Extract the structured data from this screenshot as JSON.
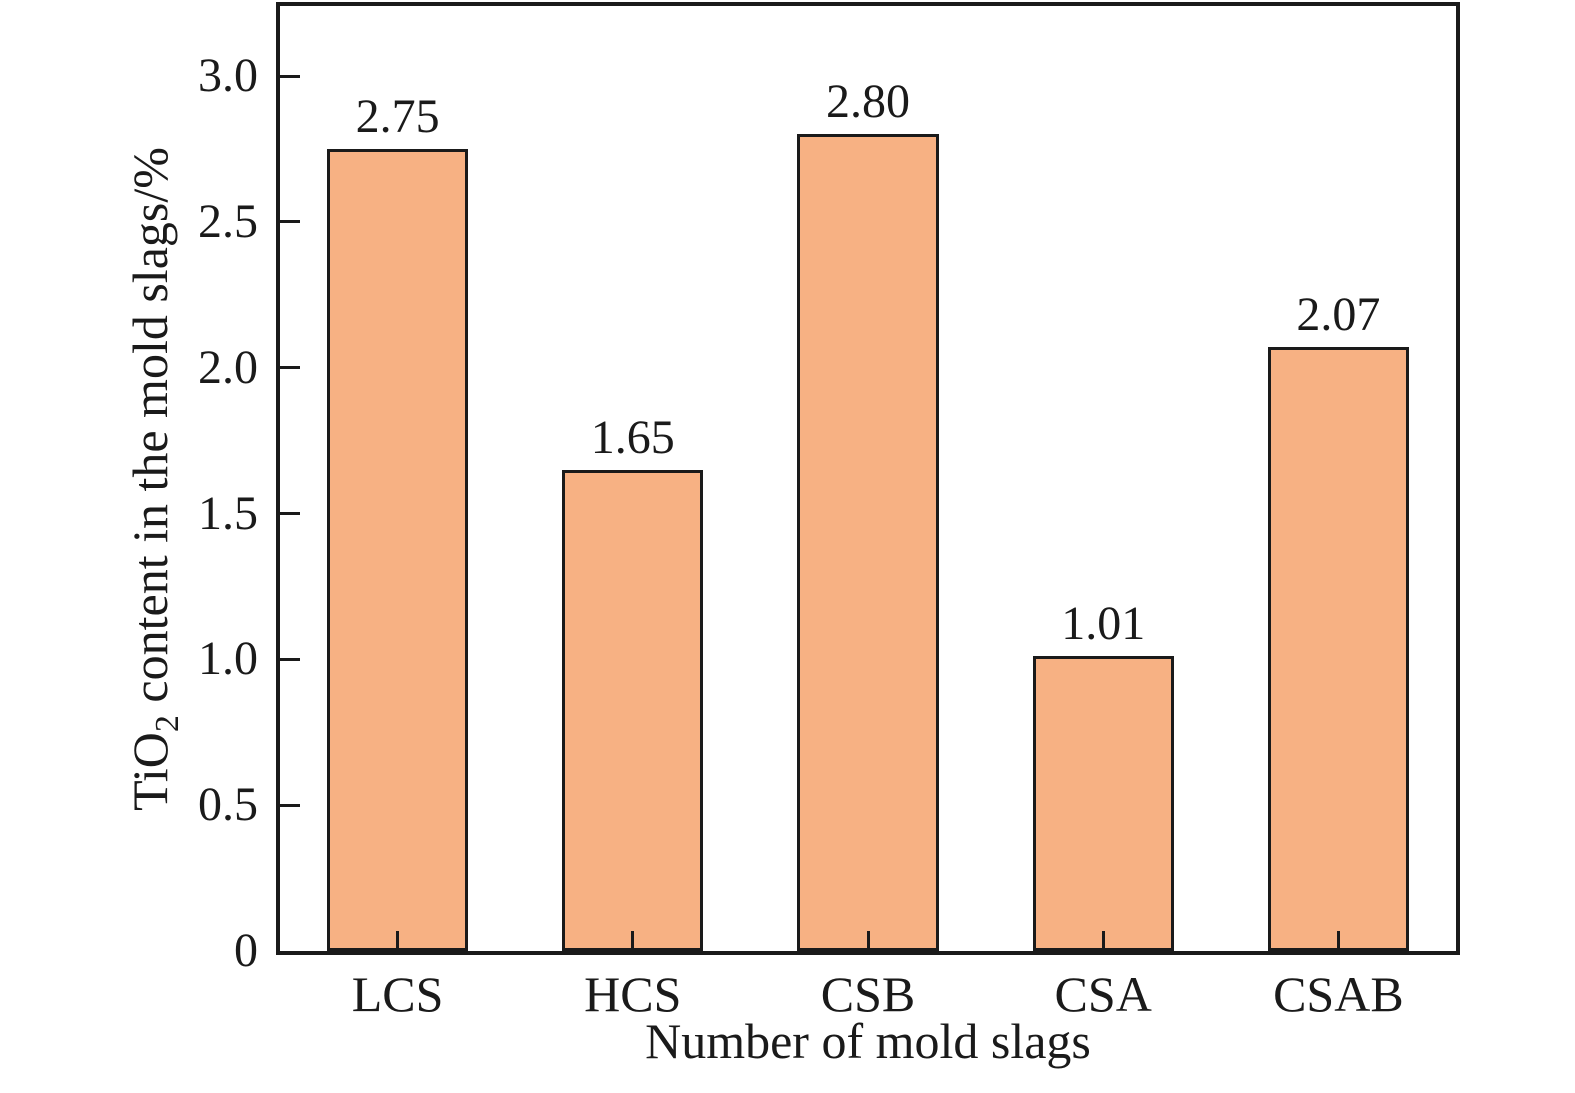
{
  "figure": {
    "background": "#ffffff"
  },
  "axes": {
    "y_label_prefix": "TiO",
    "y_label_sub": "2",
    "y_label_suffix": " content in the mold slags/%",
    "x_label": "Number of mold slags"
  },
  "chart_data": {
    "type": "bar",
    "categories": [
      "LCS",
      "HCS",
      "CSB",
      "CSA",
      "CSAB"
    ],
    "values": [
      2.75,
      1.65,
      2.8,
      1.01,
      2.07
    ],
    "value_labels": [
      "2.75",
      "1.65",
      "2.80",
      "1.01",
      "2.07"
    ],
    "title": "",
    "xlabel": "Number of mold slags",
    "ylabel": "TiO2 content in the mold slags/%",
    "ylim": [
      0,
      3.24
    ],
    "yticks": [
      0,
      0.5,
      1.0,
      1.5,
      2.0,
      2.5,
      3.0
    ],
    "ytick_labels": [
      "0",
      "0.5",
      "1.0",
      "1.5",
      "2.0",
      "2.5",
      "3.0"
    ],
    "bar_color": "#F7B183",
    "bar_edge_color": "#1A1A1A",
    "axis_color": "#1A1A1A",
    "bar_width_frac": 0.6,
    "grid": false,
    "legend_position": "none"
  }
}
